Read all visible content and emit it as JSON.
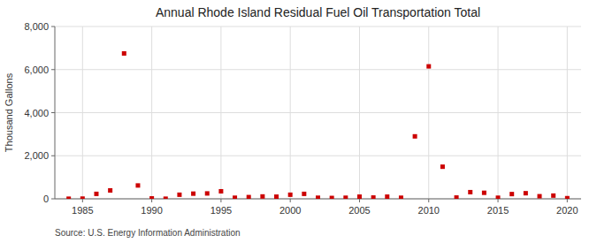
{
  "chart_data": {
    "type": "scatter",
    "title": "Annual Rhode Island Residual Fuel Oil Transportation Total",
    "y_label": "Thousand Gallons",
    "source": "Source: U.S. Energy Information Administration",
    "x": [
      1984,
      1985,
      1986,
      1987,
      1988,
      1989,
      1990,
      1991,
      1992,
      1993,
      1994,
      1995,
      1996,
      1997,
      1998,
      1999,
      2000,
      2001,
      2002,
      2003,
      2004,
      2005,
      2006,
      2007,
      2008,
      2009,
      2010,
      2011,
      2012,
      2013,
      2014,
      2015,
      2016,
      2017,
      2018,
      2019,
      2020
    ],
    "values": [
      5,
      10,
      230,
      390,
      6750,
      620,
      20,
      5,
      190,
      240,
      250,
      350,
      50,
      80,
      110,
      100,
      190,
      230,
      50,
      40,
      50,
      100,
      60,
      100,
      50,
      2900,
      6150,
      1490,
      60,
      310,
      280,
      50,
      220,
      260,
      120,
      150,
      30
    ],
    "color": "#cc0000",
    "marker": "square",
    "xlim": [
      1983,
      2021
    ],
    "ylim": [
      0,
      8000
    ],
    "xticks": [
      1985,
      1990,
      1995,
      2000,
      2005,
      2010,
      2015,
      2020
    ],
    "yticks": [
      0,
      {
        "value": 2000,
        "label": "2,000"
      },
      {
        "value": 4000,
        "label": "4,000"
      },
      {
        "value": 6000,
        "label": "6,000"
      },
      {
        "value": 8000,
        "label": "8,000"
      }
    ],
    "grid": true
  }
}
